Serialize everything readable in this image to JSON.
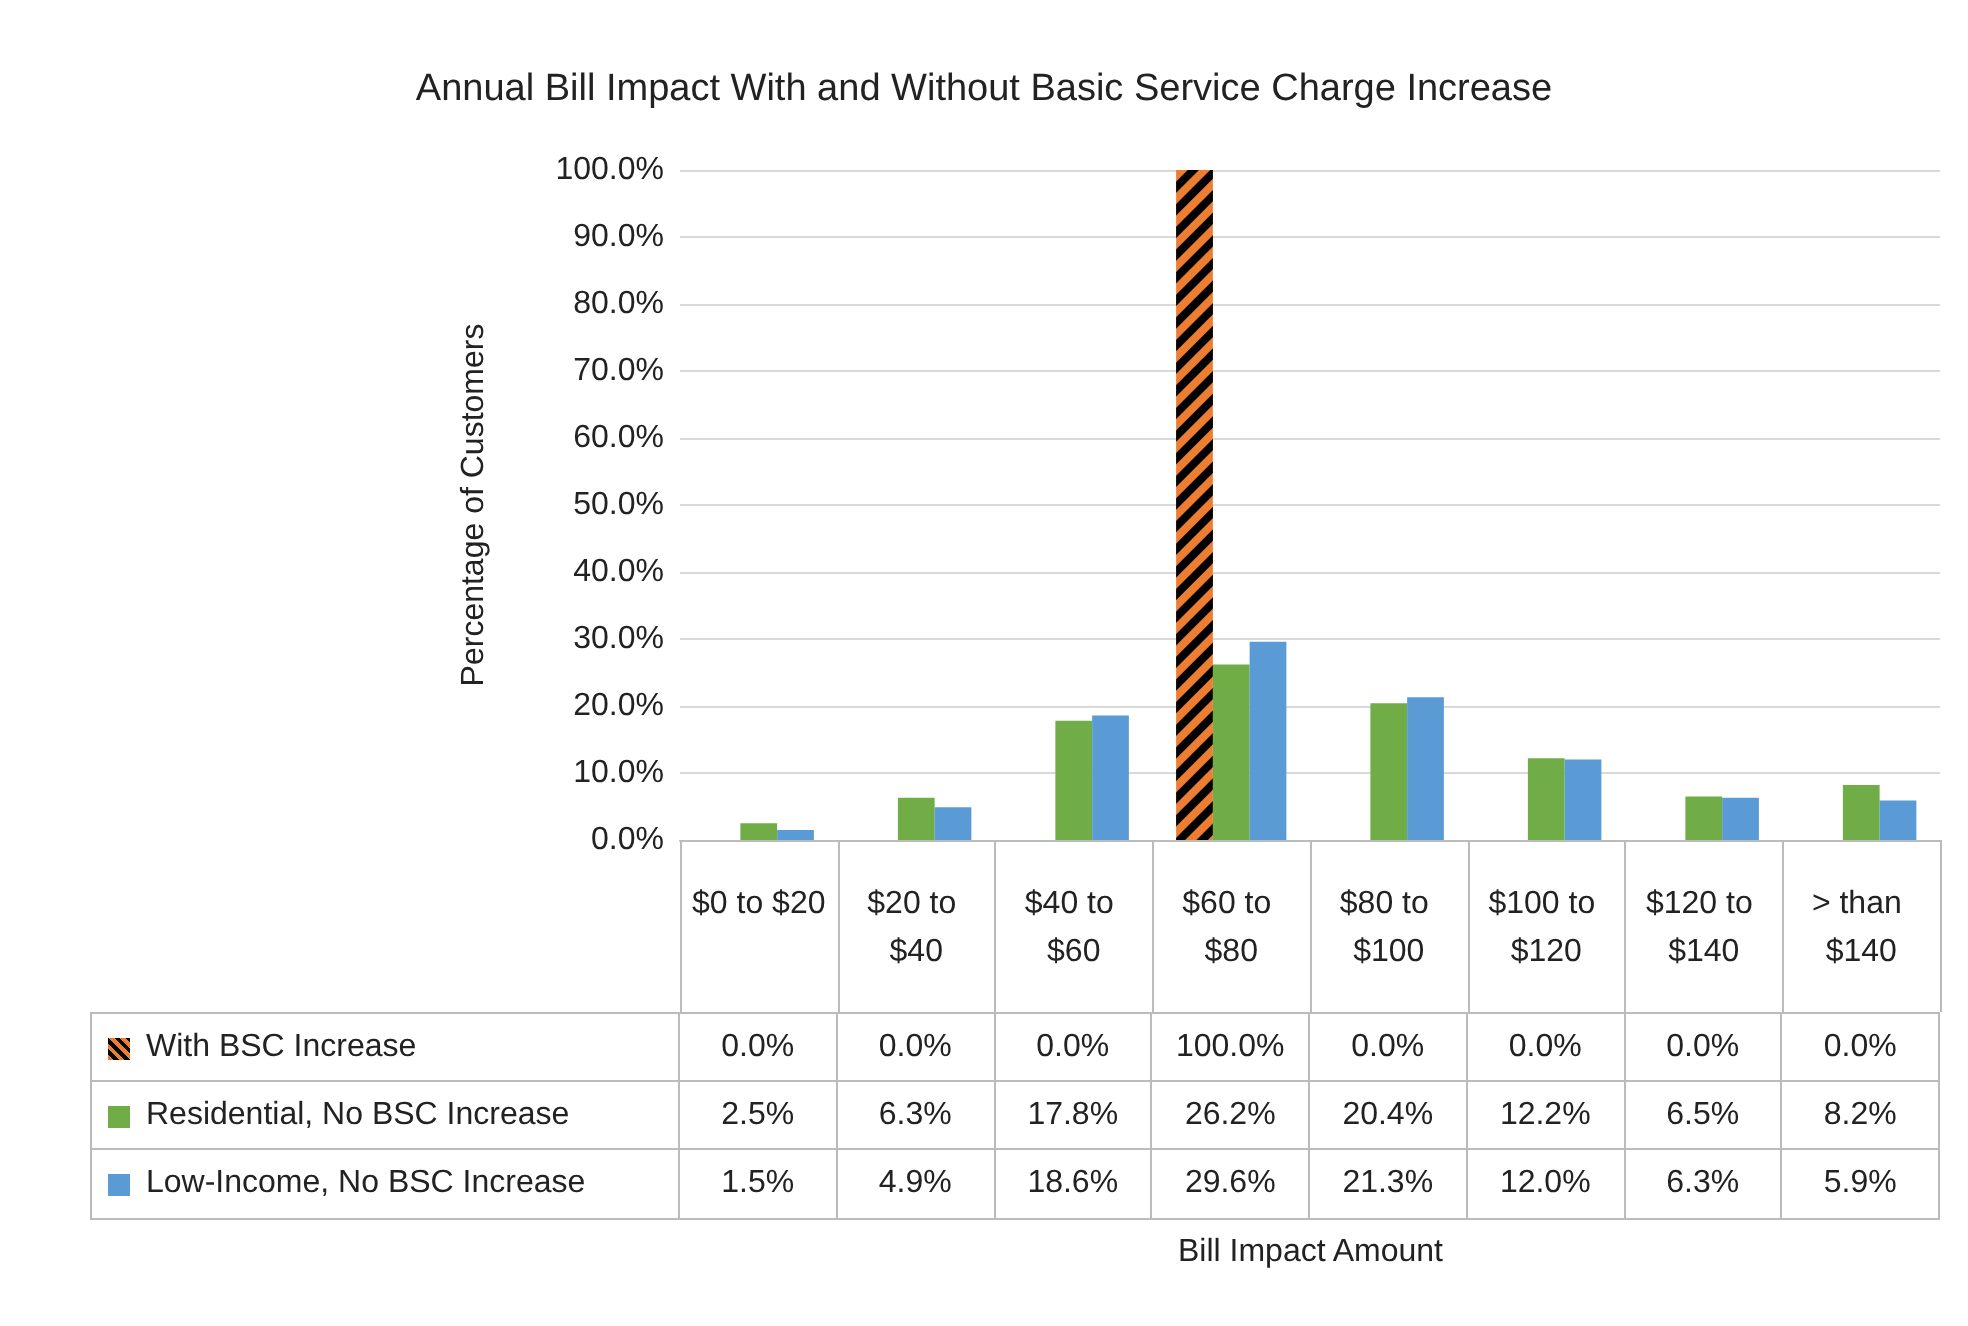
{
  "chart_data": {
    "type": "bar",
    "title": "Annual Bill Impact With and Without Basic Service Charge Increase",
    "annotations": [
      "Bill Impact Amount"
    ],
    "ylabel": "Percentage of Customers",
    "categories": [
      "$0 to $20",
      "$20 to $40",
      "$40 to $60",
      "$60 to $80",
      "$80 to $100",
      "$100 to $120",
      "$120 to $140",
      "> than $140"
    ],
    "series": [
      {
        "name": "With BSC Increase",
        "color": "#ed7d31",
        "values": [
          0,
          0,
          0,
          100,
          0,
          0,
          0,
          0
        ],
        "value_labels": [
          "0.0%",
          "0.0%",
          "0.0%",
          "100.0%",
          "0.0%",
          "0.0%",
          "0.0%",
          "0.0%"
        ]
      },
      {
        "name": "Residential, No BSC Increase",
        "color": "#70ad47",
        "values": [
          2.5,
          6.3,
          17.8,
          26.2,
          20.4,
          12.2,
          6.5,
          8.2
        ],
        "value_labels": [
          "2.5%",
          "6.3%",
          "17.8%",
          "26.2%",
          "20.4%",
          "12.2%",
          "6.5%",
          "8.2%"
        ]
      },
      {
        "name": "Low-Income, No BSC Increase",
        "color": "#5b9bd5",
        "values": [
          1.5,
          4.9,
          18.6,
          29.6,
          21.3,
          12.0,
          6.3,
          5.9
        ],
        "value_labels": [
          "1.5%",
          "4.9%",
          "18.6%",
          "29.6%",
          "21.3%",
          "12.0%",
          "6.3%",
          "5.9%"
        ]
      }
    ],
    "ylim": [
      0,
      100
    ],
    "yticks": [
      {
        "value": 0,
        "label": "0.0%"
      },
      {
        "value": 10,
        "label": "10.0%"
      },
      {
        "value": 20,
        "label": "20.0%"
      },
      {
        "value": 30,
        "label": "30.0%"
      },
      {
        "value": 40,
        "label": "40.0%"
      },
      {
        "value": 50,
        "label": "50.0%"
      },
      {
        "value": 60,
        "label": "60.0%"
      },
      {
        "value": 70,
        "label": "70.0%"
      },
      {
        "value": 80,
        "label": "80.0%"
      },
      {
        "value": 90,
        "label": "90.0%"
      },
      {
        "value": 100,
        "label": "100.0%"
      }
    ],
    "grid": "y",
    "legend": "bottom left"
  }
}
